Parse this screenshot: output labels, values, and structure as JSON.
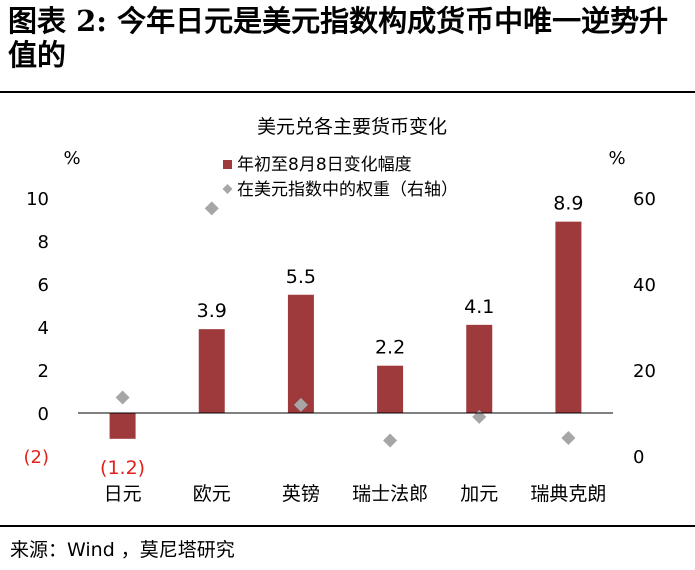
{
  "header": {
    "title": "图表 2: 今年日元是美元指数构成货币中唯一逆势升值的"
  },
  "footer": {
    "source": "来源：Wind ，莫尼塔研究"
  },
  "colors": {
    "bar": "#9e3a3b",
    "diamond": "#a6a6a6",
    "negative_label": "#e4201a",
    "axis": "#000000"
  },
  "chart_data": {
    "type": "bar",
    "title": "美元兑各主要货币变化",
    "ylabel_left": "%",
    "ylabel_right": "%",
    "categories": [
      "日元",
      "欧元",
      "英镑",
      "瑞士法郎",
      "加元",
      "瑞典克朗"
    ],
    "series": [
      {
        "name": "年初至8月8日变化幅度",
        "type": "bar",
        "axis": "left",
        "values": [
          -1.2,
          3.9,
          5.5,
          2.2,
          4.1,
          8.9
        ],
        "labels": [
          "(1.2)",
          "3.9",
          "5.5",
          "2.2",
          "4.1",
          "8.9"
        ]
      },
      {
        "name": "在美元指数中的权重（右轴）",
        "type": "scatter",
        "marker": "diamond",
        "axis": "right",
        "values": [
          13.6,
          57.6,
          11.9,
          3.6,
          9.1,
          4.2
        ]
      }
    ],
    "ylim_left": [
      -2,
      10
    ],
    "yticks_left": [
      "(2)",
      "0",
      "2",
      "4",
      "6",
      "8",
      "10"
    ],
    "ylim_right": [
      0,
      60
    ],
    "yticks_right": [
      "0",
      "20",
      "40",
      "60"
    ],
    "legend_position": "top-center",
    "grid": false
  }
}
